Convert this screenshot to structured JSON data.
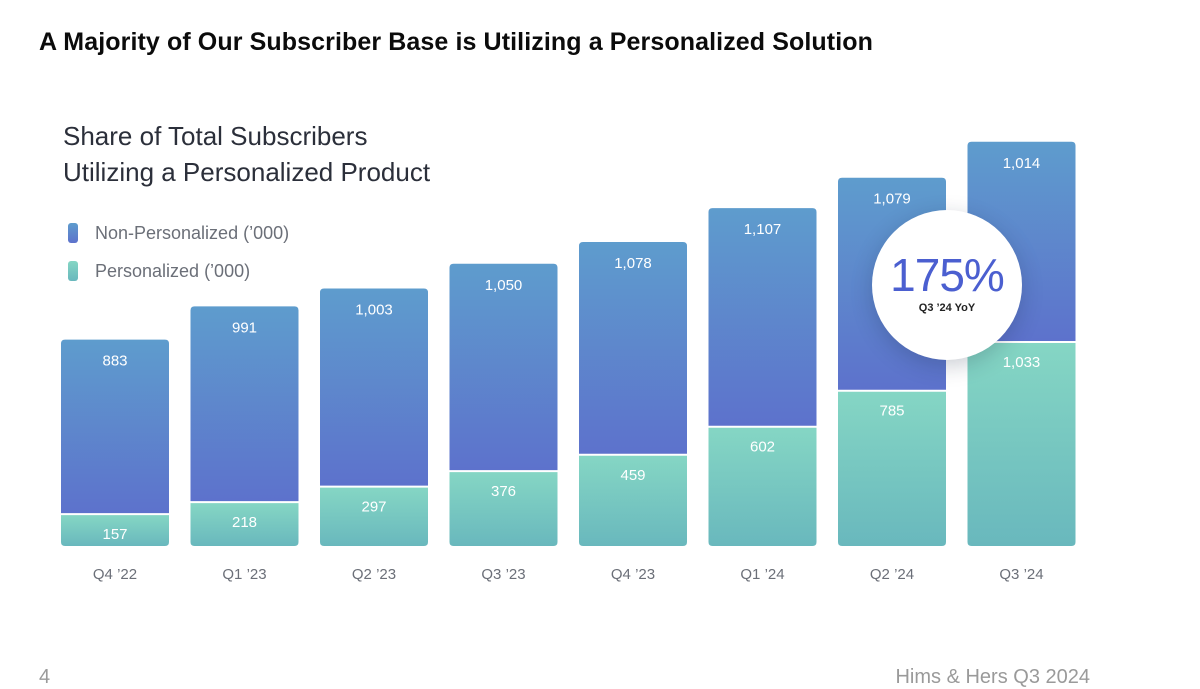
{
  "slide": {
    "title": "A Majority of Our Subscriber Base is Utilizing a Personalized Solution",
    "page_number": "4",
    "footer": "Hims & Hers Q3 2024"
  },
  "colors": {
    "non_personalized_top": "#5e9ccd",
    "non_personalized_bottom": "#5d72cc",
    "personalized_top": "#85d6c4",
    "personalized_bottom": "#69b8bd",
    "badge_text": "#4b5fd0"
  },
  "chart_data": {
    "type": "bar",
    "stacked": true,
    "title_line1": "Share of Total Subscribers",
    "title_line2": "Utilizing a Personalized Product",
    "categories": [
      "Q4 ’22",
      "Q1 ’23",
      "Q2 ’23",
      "Q3 ’23",
      "Q4 ’23",
      "Q1 ’24",
      "Q2 ’24",
      "Q3 ’24"
    ],
    "series": [
      {
        "name": "Personalized (’000)",
        "values": [
          157,
          218,
          297,
          376,
          459,
          602,
          785,
          1033
        ],
        "labels": [
          "157",
          "218",
          "297",
          "376",
          "459",
          "602",
          "785",
          "1,033"
        ]
      },
      {
        "name": "Non-Personalized (’000)",
        "values": [
          883,
          991,
          1003,
          1050,
          1078,
          1107,
          1079,
          1014
        ],
        "labels": [
          "883",
          "991",
          "1,003",
          "1,050",
          "1,078",
          "1,107",
          "1,079",
          "1,014"
        ]
      }
    ],
    "legend_position": "top-left",
    "grid": false,
    "xlabel": "",
    "ylabel": ""
  },
  "badge": {
    "value": "175%",
    "caption": "Q3 ’24 YoY"
  }
}
